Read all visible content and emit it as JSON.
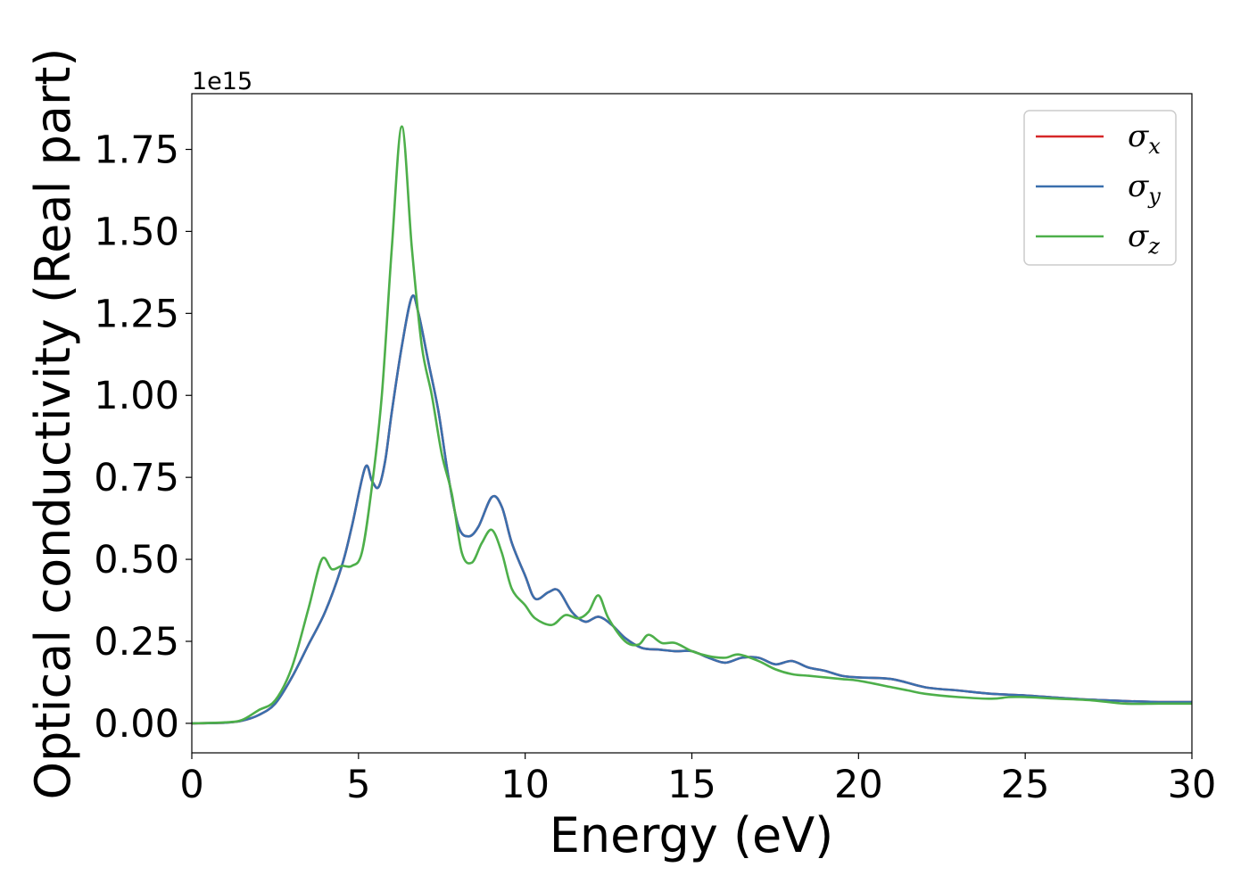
{
  "chart_data": {
    "type": "line",
    "xlabel": "Energy (eV)",
    "ylabel": "Optical conductivity (Real part)",
    "y_offset_text": "1e15",
    "xlim": [
      0,
      30
    ],
    "ylim": [
      -0.09,
      1.92
    ],
    "x_ticks": [
      0,
      5,
      10,
      15,
      20,
      25,
      30
    ],
    "x_tick_labels": [
      "0",
      "5",
      "10",
      "15",
      "20",
      "25",
      "30"
    ],
    "y_ticks": [
      0.0,
      0.25,
      0.5,
      0.75,
      1.0,
      1.25,
      1.5,
      1.75
    ],
    "y_tick_labels": [
      "0.00",
      "0.25",
      "0.50",
      "0.75",
      "1.00",
      "1.25",
      "1.50",
      "1.75"
    ],
    "grid": false,
    "legend_position": "top-right",
    "series": [
      {
        "name": "σx",
        "symbol": "σ",
        "subscript": "x",
        "color": "#d62728",
        "points": [
          [
            0,
            0
          ],
          [
            1,
            0.002
          ],
          [
            1.5,
            0.008
          ],
          [
            2,
            0.025
          ],
          [
            2.5,
            0.06
          ],
          [
            3,
            0.14
          ],
          [
            3.5,
            0.24
          ],
          [
            4,
            0.34
          ],
          [
            4.5,
            0.48
          ],
          [
            4.8,
            0.6
          ],
          [
            5.2,
            0.78
          ],
          [
            5.4,
            0.74
          ],
          [
            5.6,
            0.72
          ],
          [
            5.8,
            0.8
          ],
          [
            6,
            0.95
          ],
          [
            6.3,
            1.15
          ],
          [
            6.6,
            1.3
          ],
          [
            6.8,
            1.25
          ],
          [
            7.1,
            1.1
          ],
          [
            7.4,
            0.95
          ],
          [
            7.7,
            0.75
          ],
          [
            8,
            0.6
          ],
          [
            8.3,
            0.57
          ],
          [
            8.6,
            0.6
          ],
          [
            9,
            0.69
          ],
          [
            9.3,
            0.66
          ],
          [
            9.6,
            0.55
          ],
          [
            10,
            0.45
          ],
          [
            10.3,
            0.38
          ],
          [
            10.7,
            0.4
          ],
          [
            11,
            0.405
          ],
          [
            11.4,
            0.34
          ],
          [
            11.8,
            0.31
          ],
          [
            12.2,
            0.325
          ],
          [
            12.6,
            0.3
          ],
          [
            13,
            0.26
          ],
          [
            13.5,
            0.23
          ],
          [
            14,
            0.225
          ],
          [
            14.5,
            0.22
          ],
          [
            15,
            0.22
          ],
          [
            15.5,
            0.2
          ],
          [
            16,
            0.185
          ],
          [
            16.5,
            0.2
          ],
          [
            17,
            0.2
          ],
          [
            17.5,
            0.18
          ],
          [
            18,
            0.19
          ],
          [
            18.5,
            0.17
          ],
          [
            19,
            0.16
          ],
          [
            19.5,
            0.145
          ],
          [
            20,
            0.14
          ],
          [
            21,
            0.135
          ],
          [
            22,
            0.11
          ],
          [
            23,
            0.1
          ],
          [
            24,
            0.09
          ],
          [
            25,
            0.085
          ],
          [
            26,
            0.078
          ],
          [
            27,
            0.072
          ],
          [
            28,
            0.068
          ],
          [
            29,
            0.065
          ],
          [
            30,
            0.065
          ]
        ]
      },
      {
        "name": "σy",
        "symbol": "σ",
        "subscript": "y",
        "color": "#3a6fad",
        "points": [
          [
            0,
            0
          ],
          [
            1,
            0.002
          ],
          [
            1.5,
            0.008
          ],
          [
            2,
            0.025
          ],
          [
            2.5,
            0.06
          ],
          [
            3,
            0.14
          ],
          [
            3.5,
            0.24
          ],
          [
            4,
            0.34
          ],
          [
            4.5,
            0.48
          ],
          [
            4.8,
            0.6
          ],
          [
            5.2,
            0.78
          ],
          [
            5.4,
            0.74
          ],
          [
            5.6,
            0.72
          ],
          [
            5.8,
            0.8
          ],
          [
            6,
            0.95
          ],
          [
            6.3,
            1.15
          ],
          [
            6.6,
            1.3
          ],
          [
            6.8,
            1.25
          ],
          [
            7.1,
            1.1
          ],
          [
            7.4,
            0.95
          ],
          [
            7.7,
            0.75
          ],
          [
            8,
            0.6
          ],
          [
            8.3,
            0.57
          ],
          [
            8.6,
            0.6
          ],
          [
            9,
            0.69
          ],
          [
            9.3,
            0.66
          ],
          [
            9.6,
            0.55
          ],
          [
            10,
            0.45
          ],
          [
            10.3,
            0.38
          ],
          [
            10.7,
            0.4
          ],
          [
            11,
            0.405
          ],
          [
            11.4,
            0.34
          ],
          [
            11.8,
            0.31
          ],
          [
            12.2,
            0.325
          ],
          [
            12.6,
            0.3
          ],
          [
            13,
            0.26
          ],
          [
            13.5,
            0.23
          ],
          [
            14,
            0.225
          ],
          [
            14.5,
            0.22
          ],
          [
            15,
            0.22
          ],
          [
            15.5,
            0.2
          ],
          [
            16,
            0.185
          ],
          [
            16.5,
            0.2
          ],
          [
            17,
            0.2
          ],
          [
            17.5,
            0.18
          ],
          [
            18,
            0.19
          ],
          [
            18.5,
            0.17
          ],
          [
            19,
            0.16
          ],
          [
            19.5,
            0.145
          ],
          [
            20,
            0.14
          ],
          [
            21,
            0.135
          ],
          [
            22,
            0.11
          ],
          [
            23,
            0.1
          ],
          [
            24,
            0.09
          ],
          [
            25,
            0.085
          ],
          [
            26,
            0.078
          ],
          [
            27,
            0.072
          ],
          [
            28,
            0.068
          ],
          [
            29,
            0.065
          ],
          [
            30,
            0.065
          ]
        ]
      },
      {
        "name": "σz",
        "symbol": "σ",
        "subscript": "z",
        "color": "#4daf4a",
        "points": [
          [
            0,
            0
          ],
          [
            1,
            0.003
          ],
          [
            1.5,
            0.01
          ],
          [
            2,
            0.04
          ],
          [
            2.5,
            0.07
          ],
          [
            3,
            0.17
          ],
          [
            3.5,
            0.35
          ],
          [
            3.9,
            0.5
          ],
          [
            4.2,
            0.47
          ],
          [
            4.5,
            0.48
          ],
          [
            4.8,
            0.48
          ],
          [
            5.1,
            0.52
          ],
          [
            5.4,
            0.72
          ],
          [
            5.7,
            1.0
          ],
          [
            6,
            1.45
          ],
          [
            6.3,
            1.82
          ],
          [
            6.6,
            1.45
          ],
          [
            6.9,
            1.15
          ],
          [
            7.2,
            1.0
          ],
          [
            7.5,
            0.82
          ],
          [
            7.8,
            0.7
          ],
          [
            8.1,
            0.52
          ],
          [
            8.4,
            0.49
          ],
          [
            8.7,
            0.55
          ],
          [
            9,
            0.59
          ],
          [
            9.3,
            0.52
          ],
          [
            9.6,
            0.41
          ],
          [
            10,
            0.36
          ],
          [
            10.3,
            0.32
          ],
          [
            10.8,
            0.3
          ],
          [
            11.2,
            0.33
          ],
          [
            11.6,
            0.32
          ],
          [
            11.9,
            0.34
          ],
          [
            12.2,
            0.39
          ],
          [
            12.5,
            0.32
          ],
          [
            13,
            0.25
          ],
          [
            13.4,
            0.24
          ],
          [
            13.7,
            0.27
          ],
          [
            14.1,
            0.245
          ],
          [
            14.5,
            0.245
          ],
          [
            15,
            0.22
          ],
          [
            15.5,
            0.205
          ],
          [
            16,
            0.2
          ],
          [
            16.4,
            0.21
          ],
          [
            17,
            0.19
          ],
          [
            17.5,
            0.165
          ],
          [
            18,
            0.15
          ],
          [
            18.5,
            0.145
          ],
          [
            19,
            0.14
          ],
          [
            19.5,
            0.135
          ],
          [
            20,
            0.13
          ],
          [
            21,
            0.11
          ],
          [
            21.5,
            0.1
          ],
          [
            22,
            0.09
          ],
          [
            23,
            0.08
          ],
          [
            24,
            0.075
          ],
          [
            24.5,
            0.08
          ],
          [
            25,
            0.08
          ],
          [
            26,
            0.075
          ],
          [
            27,
            0.07
          ],
          [
            28,
            0.06
          ],
          [
            29,
            0.06
          ],
          [
            30,
            0.06
          ]
        ]
      }
    ]
  }
}
